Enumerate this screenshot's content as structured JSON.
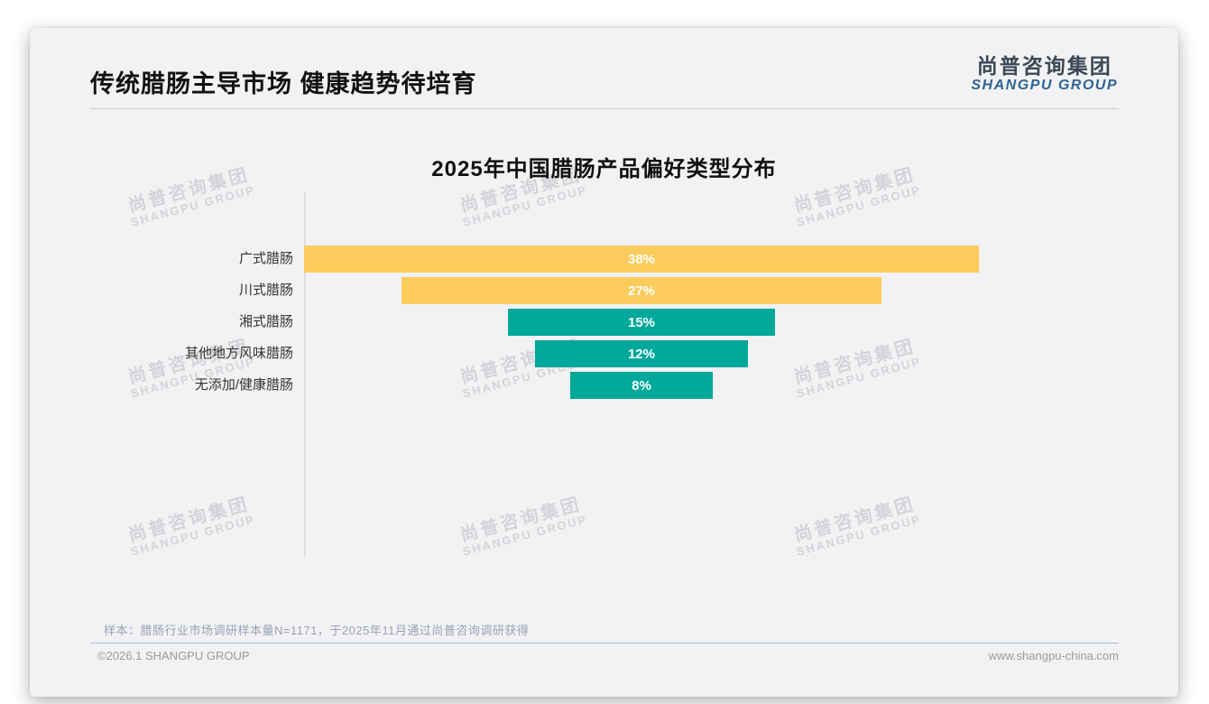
{
  "slide": {
    "header": {
      "title": "传统腊肠主导市场 健康趋势待培育",
      "logo_cn": "尚普咨询集团",
      "logo_en": "SHANGPU GROUP"
    },
    "watermark": {
      "cn": "尚普咨询集团",
      "en": "SHANGPU GROUP"
    },
    "note": "样本：腊肠行业市场调研样本量N=1171，于2025年11月通过尚普咨询调研获得",
    "footer": {
      "left": "©2026.1 SHANGPU GROUP",
      "right": "www.shangpu-china.com"
    }
  },
  "chart_data": {
    "type": "bar",
    "orientation": "horizontal-centered-funnel",
    "title": "2025年中国腊肠产品偏好类型分布",
    "categories": [
      "广式腊肠",
      "川式腊肠",
      "湘式腊肠",
      "其他地方风味腊肠",
      "无添加/健康腊肠"
    ],
    "values": [
      38,
      27,
      15,
      12,
      8
    ],
    "value_labels": [
      "38%",
      "27%",
      "15%",
      "12%",
      "8%"
    ],
    "colors": [
      "#FBCB5C",
      "#FBCB5C",
      "#00A89C",
      "#00A89C",
      "#00A89C"
    ],
    "bar_label_color": "#ffffff",
    "xlim": [
      0,
      38
    ],
    "grid": false,
    "legend": false
  },
  "colors": {
    "accent_yellow": "#FBCB5C",
    "accent_teal": "#00A89C",
    "logo_blue": "#2d6497",
    "slide_background": "#f2f2f4",
    "note_gray_blue": "#99a2b4",
    "footer_divider_blue": "#a9bccc"
  }
}
